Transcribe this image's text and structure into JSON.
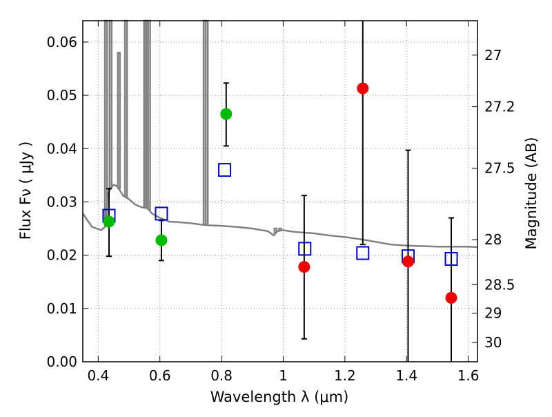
{
  "chart_data": {
    "type": "scatter",
    "title": "",
    "xlabel": "Wavelength  λ (μm)",
    "ylabel": "Flux  Fν  ( μJy )",
    "y2label": "Magnitude (AB)",
    "xlim": [
      0.35,
      1.63
    ],
    "ylim": [
      0.0,
      0.064
    ],
    "grid": true,
    "x_ticks": [
      {
        "value": 0.4,
        "label": "0.4"
      },
      {
        "value": 0.6,
        "label": "0.6"
      },
      {
        "value": 0.8,
        "label": "0.8"
      },
      {
        "value": 1.0,
        "label": "1"
      },
      {
        "value": 1.2,
        "label": "1.2"
      },
      {
        "value": 1.4,
        "label": "1.4"
      },
      {
        "value": 1.6,
        "label": "1.6"
      }
    ],
    "y_ticks": [
      {
        "value": 0.0,
        "label": "0.00"
      },
      {
        "value": 0.01,
        "label": "0.01"
      },
      {
        "value": 0.02,
        "label": "0.02"
      },
      {
        "value": 0.03,
        "label": "0.03"
      },
      {
        "value": 0.04,
        "label": "0.04"
      },
      {
        "value": 0.05,
        "label": "0.05"
      },
      {
        "value": 0.06,
        "label": "0.06"
      }
    ],
    "y2_ticks": [
      {
        "value": 27,
        "label": "27"
      },
      {
        "value": 27.2,
        "label": "27.2"
      },
      {
        "value": 27.5,
        "label": "27.5"
      },
      {
        "value": 28,
        "label": "28"
      },
      {
        "value": 28.5,
        "label": "28.5"
      },
      {
        "value": 29,
        "label": "29"
      },
      {
        "value": 30,
        "label": "30"
      }
    ],
    "colors": {
      "model": "#808080",
      "detection": "#00bb00",
      "upper_limit": "#ee0000",
      "model_flux": "#0000cc",
      "errorbar": "#000000",
      "grid": "#888888"
    },
    "series": [
      {
        "kind": "model_spectrum",
        "x": [
          0.35,
          0.38,
          0.41,
          0.425,
          0.43,
          0.44,
          0.45,
          0.46,
          0.47,
          0.48,
          0.5,
          0.52,
          0.54,
          0.56,
          0.575,
          0.6,
          0.63,
          0.66,
          0.7,
          0.74,
          0.76,
          0.8,
          0.85,
          0.9,
          0.95,
          0.97,
          0.98,
          1.0,
          1.02,
          1.05,
          1.1,
          1.15,
          1.2,
          1.25,
          1.3,
          1.35,
          1.4,
          1.45,
          1.5,
          1.55,
          1.6,
          1.63
        ],
        "y": [
          0.0278,
          0.0253,
          0.0247,
          0.0255,
          0.0312,
          0.0325,
          0.0332,
          0.033,
          0.0322,
          0.0312,
          0.0305,
          0.0295,
          0.029,
          0.0288,
          0.0278,
          0.027,
          0.0263,
          0.0262,
          0.026,
          0.0257,
          0.0256,
          0.0255,
          0.0253,
          0.025,
          0.0245,
          0.0237,
          0.0245,
          0.0247,
          0.0245,
          0.0243,
          0.0241,
          0.0237,
          0.0234,
          0.023,
          0.0225,
          0.022,
          0.0218,
          0.0217,
          0.0216,
          0.0216,
          0.0216,
          0.0215
        ]
      },
      {
        "kind": "model_lines",
        "lines": [
          {
            "x": 0.425,
            "peak": 0.064
          },
          {
            "x": 0.44,
            "peak": 0.064
          },
          {
            "x": 0.467,
            "peak": 0.058
          },
          {
            "x": 0.49,
            "peak": 0.064
          },
          {
            "x": 0.552,
            "peak": 0.064
          },
          {
            "x": 0.558,
            "peak": 0.064
          },
          {
            "x": 0.565,
            "peak": 0.064
          },
          {
            "x": 0.745,
            "peak": 0.064
          },
          {
            "x": 0.752,
            "peak": 0.064
          },
          {
            "x": 0.975,
            "peak": 0.025
          },
          {
            "x": 0.99,
            "peak": 0.025
          }
        ]
      },
      {
        "kind": "detection",
        "x": [
          0.435,
          0.605,
          0.815
        ],
        "y": [
          0.0263,
          0.0228,
          0.0465
        ],
        "yerr_low": [
          0.0198,
          0.019,
          0.0405
        ],
        "yerr_high": [
          0.0325,
          0.0265,
          0.0523
        ]
      },
      {
        "kind": "upper_limit",
        "x": [
          1.068,
          1.258,
          1.405,
          1.545
        ],
        "y": [
          0.0178,
          0.0513,
          0.0188,
          0.012
        ],
        "yerr_low": [
          0.0043,
          0.022,
          0.0,
          0.0
        ],
        "yerr_high": [
          0.0312,
          0.064,
          0.0397,
          0.027
        ]
      },
      {
        "kind": "model_flux",
        "x": [
          0.435,
          0.605,
          0.81,
          1.07,
          1.258,
          1.405,
          1.545
        ],
        "y": [
          0.0274,
          0.0278,
          0.036,
          0.0212,
          0.0204,
          0.0198,
          0.0193
        ]
      }
    ]
  }
}
